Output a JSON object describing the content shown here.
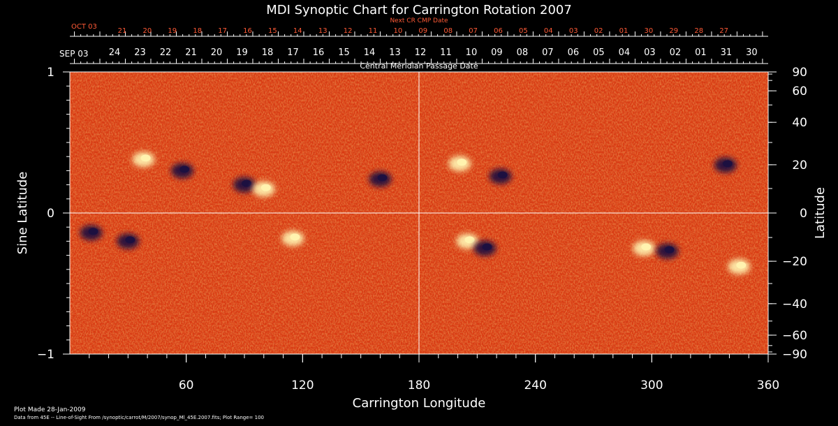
{
  "chart_data": {
    "type": "heatmap",
    "title": "MDI Synoptic Chart for Carrington Rotation 2007",
    "xlabel": "Carrington Longitude",
    "ylabel_left": "Sine Latitude",
    "ylabel_right": "Latitude",
    "xlim": [
      0,
      360
    ],
    "ylim": [
      -1,
      1
    ],
    "x_ticks": [
      60,
      120,
      180,
      240,
      300,
      360
    ],
    "y_ticks_left": [
      {
        "value": 1,
        "label": "1"
      },
      {
        "value": 0,
        "label": "0"
      },
      {
        "value": -1,
        "label": "−1"
      }
    ],
    "y_ticks_right": [
      {
        "value": 90,
        "label": "90"
      },
      {
        "value": 60,
        "label": "60"
      },
      {
        "value": 40,
        "label": "40"
      },
      {
        "value": 20,
        "label": "20"
      },
      {
        "value": 0,
        "label": "0"
      },
      {
        "value": -20,
        "label": "−20"
      },
      {
        "value": -40,
        "label": "−40"
      },
      {
        "value": -60,
        "label": "−60"
      },
      {
        "value": -90,
        "label": "−90"
      }
    ],
    "top_axis": {
      "label": "Central Meridian Passage Date",
      "start_label": "SEP 03",
      "dates": [
        "24",
        "23",
        "22",
        "21",
        "20",
        "19",
        "18",
        "17",
        "16",
        "15",
        "14",
        "13",
        "12",
        "11",
        "10",
        "09",
        "08",
        "07",
        "06",
        "05",
        "04",
        "03",
        "02",
        "01",
        "31",
        "30"
      ]
    },
    "next_axis": {
      "label": "Next CR CMP Date",
      "start_label": "OCT 03",
      "dates": [
        "21",
        "20",
        "19",
        "18",
        "17",
        "16",
        "15",
        "14",
        "13",
        "12",
        "11",
        "10",
        "09",
        "08",
        "07",
        "06",
        "05",
        "04",
        "03",
        "02",
        "01",
        "30",
        "29",
        "28",
        "27"
      ]
    },
    "crosshair": {
      "longitude": 180,
      "sine_latitude": 0
    },
    "active_regions": [
      {
        "longitude": 38,
        "sine_latitude": 0.38,
        "polarity": "positive"
      },
      {
        "longitude": 58,
        "sine_latitude": 0.3,
        "polarity": "negative"
      },
      {
        "longitude": 90,
        "sine_latitude": 0.2,
        "polarity": "negative"
      },
      {
        "longitude": 100,
        "sine_latitude": 0.17,
        "polarity": "positive"
      },
      {
        "longitude": 11,
        "sine_latitude": -0.14,
        "polarity": "negative"
      },
      {
        "longitude": 30,
        "sine_latitude": -0.2,
        "polarity": "negative"
      },
      {
        "longitude": 115,
        "sine_latitude": -0.18,
        "polarity": "positive"
      },
      {
        "longitude": 160,
        "sine_latitude": 0.24,
        "polarity": "negative"
      },
      {
        "longitude": 201,
        "sine_latitude": 0.35,
        "polarity": "positive"
      },
      {
        "longitude": 222,
        "sine_latitude": 0.26,
        "polarity": "negative"
      },
      {
        "longitude": 205,
        "sine_latitude": -0.2,
        "polarity": "positive"
      },
      {
        "longitude": 214,
        "sine_latitude": -0.25,
        "polarity": "negative"
      },
      {
        "longitude": 296,
        "sine_latitude": -0.25,
        "polarity": "positive"
      },
      {
        "longitude": 308,
        "sine_latitude": -0.27,
        "polarity": "negative"
      },
      {
        "longitude": 338,
        "sine_latitude": 0.34,
        "polarity": "negative"
      },
      {
        "longitude": 345,
        "sine_latitude": -0.38,
        "polarity": "positive"
      }
    ],
    "colors": {
      "background": "#000000",
      "field_base": "#d93a12",
      "positive": "#fff3b0",
      "negative": "#1b1040",
      "axis": "#ffffff",
      "next_dates": "#ff5a36"
    }
  },
  "footer": {
    "plot_made": "Plot Made 28-Jan-2009",
    "source": "Data from 45E -- Line-of-Sight From /synoptic/carrot/M/2007/synop_Ml_45E.2007.fits; Plot Range= 100"
  }
}
